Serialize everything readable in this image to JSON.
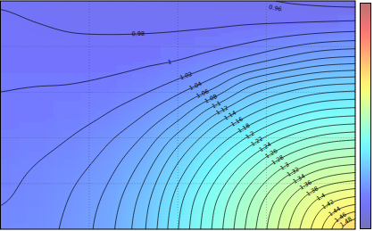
{
  "chart_data": {
    "type": "contour",
    "x": [
      0,
      0.4,
      0.8,
      1.2,
      1.6,
      2,
      2.4,
      2.8,
      3.2,
      3.6,
      4
    ],
    "y": [
      0,
      0.625,
      1.25,
      1.875,
      2.5,
      3.125,
      3.75,
      4.375,
      5
    ],
    "z": [
      [
        1.025,
        1.032,
        1.046,
        1.072,
        1.115,
        1.179,
        1.243,
        1.307,
        1.372,
        1.436,
        1.5
      ],
      [
        1.019,
        1.027,
        1.042,
        1.066,
        1.108,
        1.171,
        1.234,
        1.295,
        1.354,
        1.405,
        1.43
      ],
      [
        1.015,
        1.022,
        1.034,
        1.054,
        1.091,
        1.149,
        1.207,
        1.261,
        1.31,
        1.345,
        1.359
      ],
      [
        1.009,
        1.014,
        1.023,
        1.039,
        1.067,
        1.116,
        1.168,
        1.214,
        1.253,
        1.279,
        1.289
      ],
      [
        1.002,
        1.005,
        1.011,
        1.021,
        1.039,
        1.071,
        1.119,
        1.159,
        1.19,
        1.211,
        1.218
      ],
      [
        0.999,
        1.0,
        1.001,
        1.005,
        1.013,
        1.029,
        1.056,
        1.099,
        1.125,
        1.142,
        1.148
      ],
      [
        0.988,
        0.988,
        0.989,
        0.991,
        0.994,
        0.998,
        1.009,
        1.024,
        1.042,
        1.058,
        1.064
      ],
      [
        0.986,
        0.982,
        0.979,
        0.978,
        0.978,
        0.979,
        0.981,
        0.985,
        0.989,
        0.993,
        0.996
      ],
      [
        0.978,
        0.974,
        0.971,
        0.97,
        0.969,
        0.968,
        0.966,
        0.963,
        0.959,
        0.956,
        0.954
      ]
    ],
    "levels": [
      0.96,
      0.98,
      1,
      1.02,
      1.04,
      1.06,
      1.08,
      1.1,
      1.12,
      1.14,
      1.16,
      1.18,
      1.2,
      1.22,
      1.24,
      1.26,
      1.28,
      1.3,
      1.32,
      1.34,
      1.36,
      1.38,
      1.4,
      1.42,
      1.44,
      1.46,
      1.48
    ],
    "xlim": [
      0,
      4
    ],
    "ylim": [
      0,
      5
    ],
    "xticks": [
      0,
      1,
      2,
      3,
      4
    ],
    "yticks": [
      0,
      1,
      2,
      3,
      4,
      5
    ],
    "grid": true,
    "tick_labels": false,
    "color_range": [
      0.88,
      1.76
    ]
  }
}
